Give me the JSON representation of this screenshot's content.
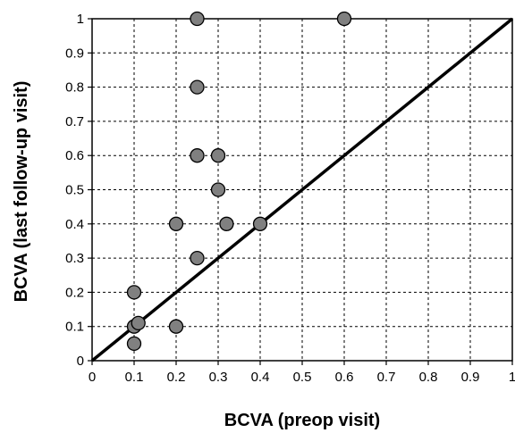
{
  "chart_data": {
    "type": "scatter",
    "title": "",
    "xlabel": "BCVA (preop visit)",
    "ylabel": "BCVA (last follow-up visit)",
    "xlim": [
      0,
      1
    ],
    "ylim": [
      0,
      1
    ],
    "x_ticks": [
      "0",
      "0.1",
      "0.2",
      "0.3",
      "0.4",
      "0.5",
      "0.6",
      "0.7",
      "0.8",
      "0.9",
      "1"
    ],
    "y_ticks": [
      "0",
      "0.1",
      "0.2",
      "0.3",
      "0.4",
      "0.5",
      "0.6",
      "0.7",
      "0.8",
      "0.9",
      "1"
    ],
    "grid": true,
    "grid_style": "dashed",
    "reference_line": {
      "type": "identity",
      "from": [
        0,
        0
      ],
      "to": [
        1,
        1
      ],
      "color": "#000000"
    },
    "marker_fill": "#808080",
    "marker_edge": "#000000",
    "points": [
      {
        "x": 0.25,
        "y": 1.0
      },
      {
        "x": 0.6,
        "y": 1.0
      },
      {
        "x": 0.25,
        "y": 0.8
      },
      {
        "x": 0.25,
        "y": 0.6
      },
      {
        "x": 0.3,
        "y": 0.6
      },
      {
        "x": 0.3,
        "y": 0.5
      },
      {
        "x": 0.2,
        "y": 0.4
      },
      {
        "x": 0.32,
        "y": 0.4
      },
      {
        "x": 0.4,
        "y": 0.4
      },
      {
        "x": 0.25,
        "y": 0.3
      },
      {
        "x": 0.1,
        "y": 0.2
      },
      {
        "x": 0.1,
        "y": 0.1
      },
      {
        "x": 0.11,
        "y": 0.11
      },
      {
        "x": 0.2,
        "y": 0.1
      },
      {
        "x": 0.1,
        "y": 0.05
      }
    ]
  }
}
